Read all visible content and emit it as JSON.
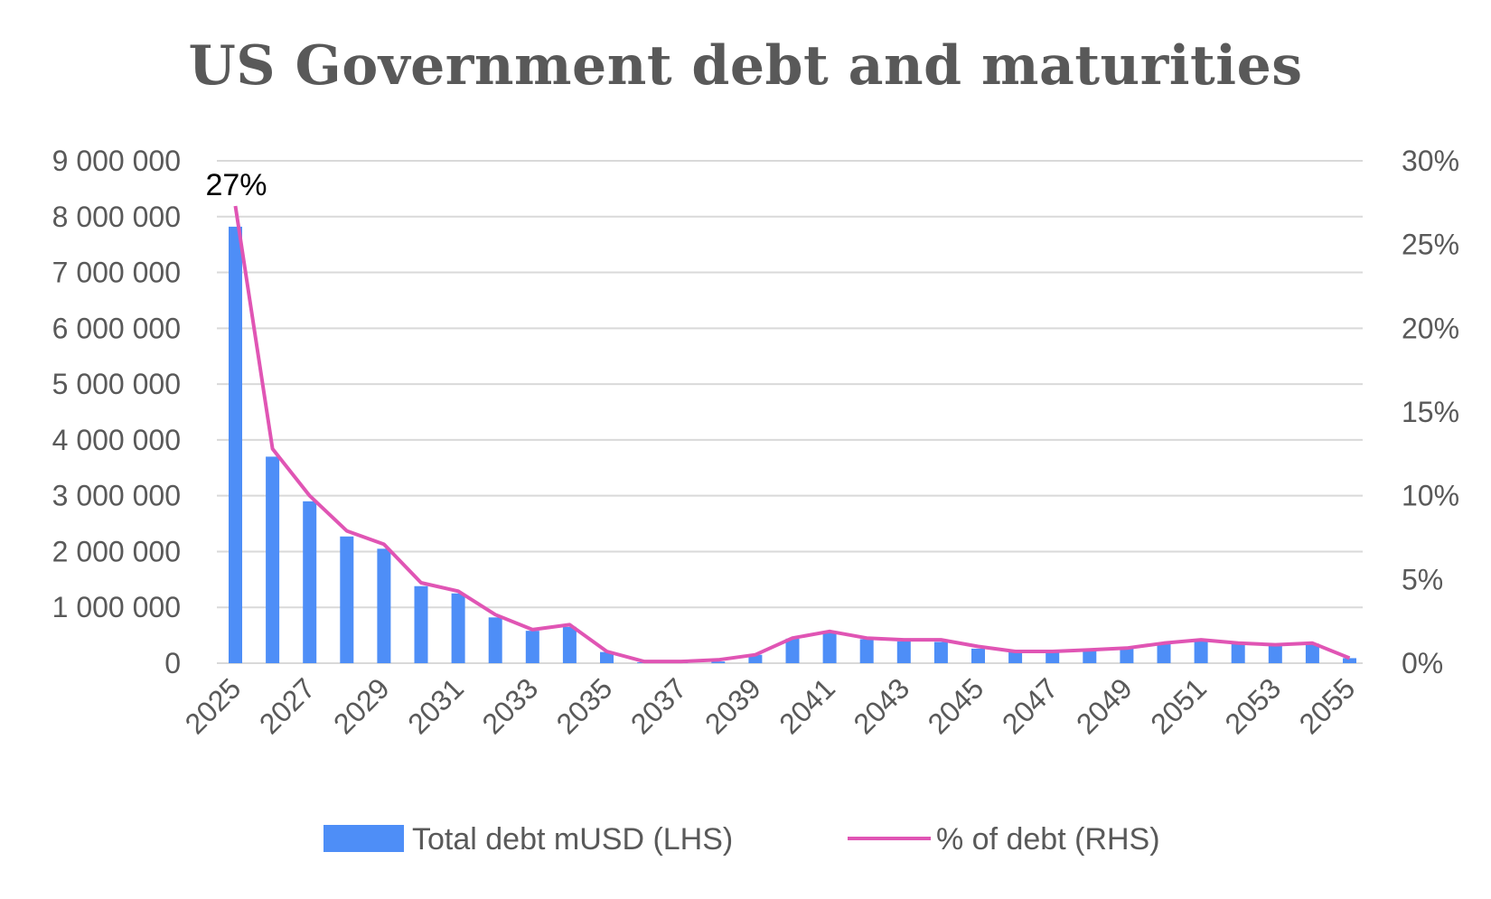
{
  "chart_data": {
    "type": "bar",
    "title": "US Government debt and maturities",
    "x": [
      2025,
      2026,
      2027,
      2028,
      2029,
      2030,
      2031,
      2032,
      2033,
      2034,
      2035,
      2036,
      2037,
      2038,
      2039,
      2040,
      2041,
      2042,
      2043,
      2044,
      2045,
      2046,
      2047,
      2048,
      2049,
      2050,
      2051,
      2052,
      2053,
      2054,
      2055
    ],
    "x_tick_labels": [
      "2025",
      "2027",
      "2029",
      "2031",
      "2033",
      "2035",
      "2037",
      "2039",
      "2041",
      "2043",
      "2045",
      "2047",
      "2049",
      "2051",
      "2053",
      "2055"
    ],
    "series": [
      {
        "name": "Total debt mUSD (LHS)",
        "type": "bar",
        "axis": "left",
        "color": "#4e8ef7",
        "values": [
          7820000,
          3700000,
          2900000,
          2270000,
          2050000,
          1380000,
          1250000,
          820000,
          580000,
          650000,
          200000,
          15000,
          20000,
          30000,
          150000,
          440000,
          560000,
          430000,
          390000,
          380000,
          260000,
          200000,
          190000,
          220000,
          260000,
          340000,
          400000,
          340000,
          320000,
          350000,
          90000
        ]
      },
      {
        "name": "% of debt (RHS)",
        "type": "line",
        "axis": "right",
        "color": "#e055b4",
        "values": [
          27.3,
          12.8,
          10.0,
          7.9,
          7.1,
          4.8,
          4.3,
          2.9,
          2.0,
          2.3,
          0.7,
          0.1,
          0.1,
          0.2,
          0.5,
          1.5,
          1.9,
          1.5,
          1.4,
          1.4,
          1.0,
          0.7,
          0.7,
          0.8,
          0.9,
          1.2,
          1.4,
          1.2,
          1.1,
          1.2,
          0.3
        ]
      }
    ],
    "y_left": {
      "range": [
        0,
        9000000
      ],
      "tick_values": [
        0,
        1000000,
        2000000,
        3000000,
        4000000,
        5000000,
        6000000,
        7000000,
        8000000,
        9000000
      ],
      "tick_labels": [
        "0",
        "1 000 000",
        "2 000 000",
        "3 000 000",
        "4 000 000",
        "5 000 000",
        "6 000 000",
        "7 000 000",
        "8 000 000",
        "9 000 000"
      ]
    },
    "y_right": {
      "range": [
        0,
        30
      ],
      "tick_values": [
        0,
        5,
        10,
        15,
        20,
        25,
        30
      ],
      "tick_labels": [
        "0%",
        "5%",
        "10%",
        "15%",
        "20%",
        "25%",
        "30%"
      ]
    },
    "annotations": [
      {
        "text": "27%",
        "x": 2025,
        "series": "% of debt (RHS)"
      }
    ],
    "grid": true,
    "legend_position": "bottom",
    "gridline_color": "#d9d9d9"
  }
}
